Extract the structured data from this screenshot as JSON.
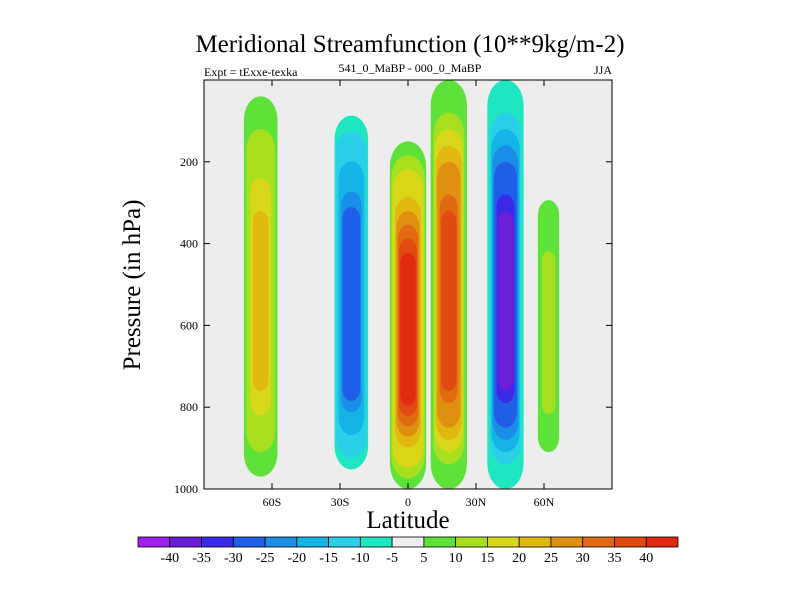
{
  "chart_data": {
    "type": "heatmap",
    "title": "Meridional Streamfunction (10**9kg/m-2)",
    "left_string": "Expt = tExxe-texka",
    "center_string": "541_0_MaBP - 000_0_MaBP",
    "right_string": "JJA",
    "xlabel": "Latitude",
    "ylabel": "Pressure (in hPa)",
    "xlim": [
      -90,
      90
    ],
    "ylim": [
      1000,
      0
    ],
    "x_ticks": [
      -60,
      -30,
      0,
      30,
      60
    ],
    "x_tick_labels": [
      "60S",
      "30S",
      "0",
      "30N",
      "60N"
    ],
    "y_ticks": [
      200,
      400,
      600,
      800,
      1000
    ],
    "y_tick_labels": [
      "200",
      "400",
      "600",
      "800",
      "1000"
    ],
    "colorbar": {
      "levels": [
        -40,
        -35,
        -30,
        -25,
        -20,
        -15,
        -10,
        -5,
        5,
        10,
        15,
        20,
        25,
        30,
        35,
        40
      ],
      "labels": [
        "-40",
        "-35",
        "-30",
        "-25",
        "-20",
        "-15",
        "-10",
        "-5",
        "5",
        "10",
        "15",
        "20",
        "25",
        "30",
        "35",
        "40"
      ],
      "colors": [
        "#a020f0",
        "#6a1ed8",
        "#3a2ae8",
        "#1f5fe8",
        "#1a8ee6",
        "#14b4e6",
        "#2ad0e8",
        "#1ee6c0",
        "#ededed",
        "#5ee23a",
        "#a8e020",
        "#d8d818",
        "#e0b810",
        "#e09010",
        "#e06a12",
        "#e04a10",
        "#e02a10"
      ]
    },
    "features": [
      {
        "name": "southern-high-lat-positive-cell",
        "lat_center": -65,
        "half_width": 8,
        "peak": 22,
        "p_top": 0,
        "p_bottom": 1000
      },
      {
        "name": "southern-mid-lat-negative-cell",
        "lat_center": -25,
        "half_width": 8,
        "peak": -28,
        "p_top": 50,
        "p_bottom": 980
      },
      {
        "name": "equatorial-positive-cell",
        "lat_center": 0,
        "half_width": 8,
        "peak": 42,
        "p_top": 150,
        "p_bottom": 1000
      },
      {
        "name": "northern-subtropical-positive-cell",
        "lat_center": 18,
        "half_width": 8,
        "peak": 38,
        "p_top": 0,
        "p_bottom": 1000
      },
      {
        "name": "northern-mid-lat-negative-cell",
        "lat_center": 43,
        "half_width": 8,
        "peak": -38,
        "p_top": 0,
        "p_bottom": 1000
      },
      {
        "name": "northern-high-lat-positive-cell",
        "lat_center": 62,
        "half_width": 6,
        "peak": 12,
        "p_top": 200,
        "p_bottom": 980
      }
    ]
  }
}
